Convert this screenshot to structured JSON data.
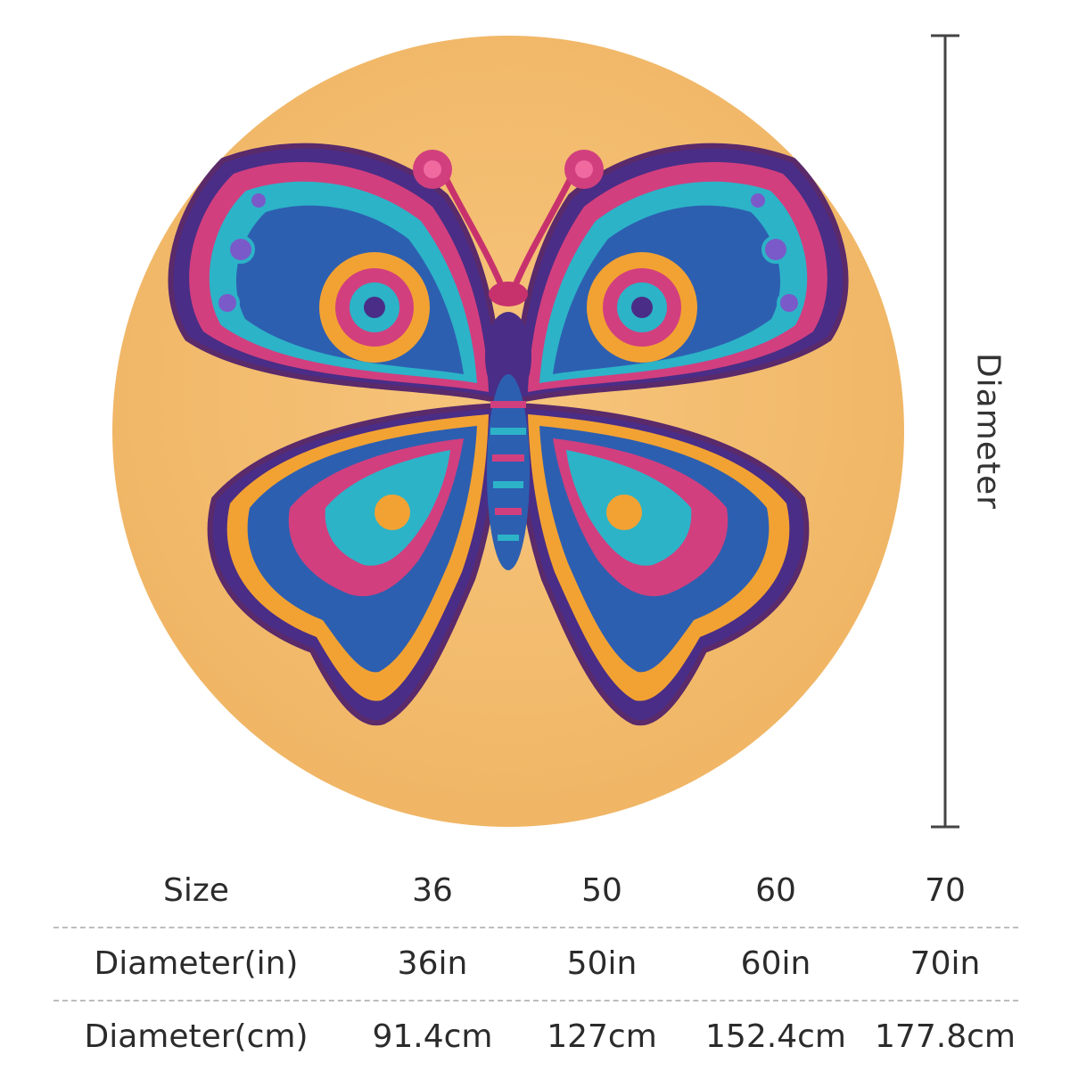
{
  "dimension_label": "Diameter",
  "colors": {
    "rug_background": "#f4bc6f",
    "wing_primary": "#2d5fb0",
    "wing_accent": "#d23f7e",
    "wing_gold": "#f2a233",
    "wing_teal": "#2cb3c8",
    "outline": "#5a2a6a"
  },
  "table": {
    "rows": [
      {
        "label": "Size",
        "values": [
          "36",
          "50",
          "60",
          "70"
        ]
      },
      {
        "label": "Diameter(in)",
        "values": [
          "36in",
          "50in",
          "60in",
          "70in"
        ]
      },
      {
        "label": "Diameter(cm)",
        "values": [
          "91.4cm",
          "127cm",
          "152.4cm",
          "177.8cm"
        ]
      }
    ]
  }
}
